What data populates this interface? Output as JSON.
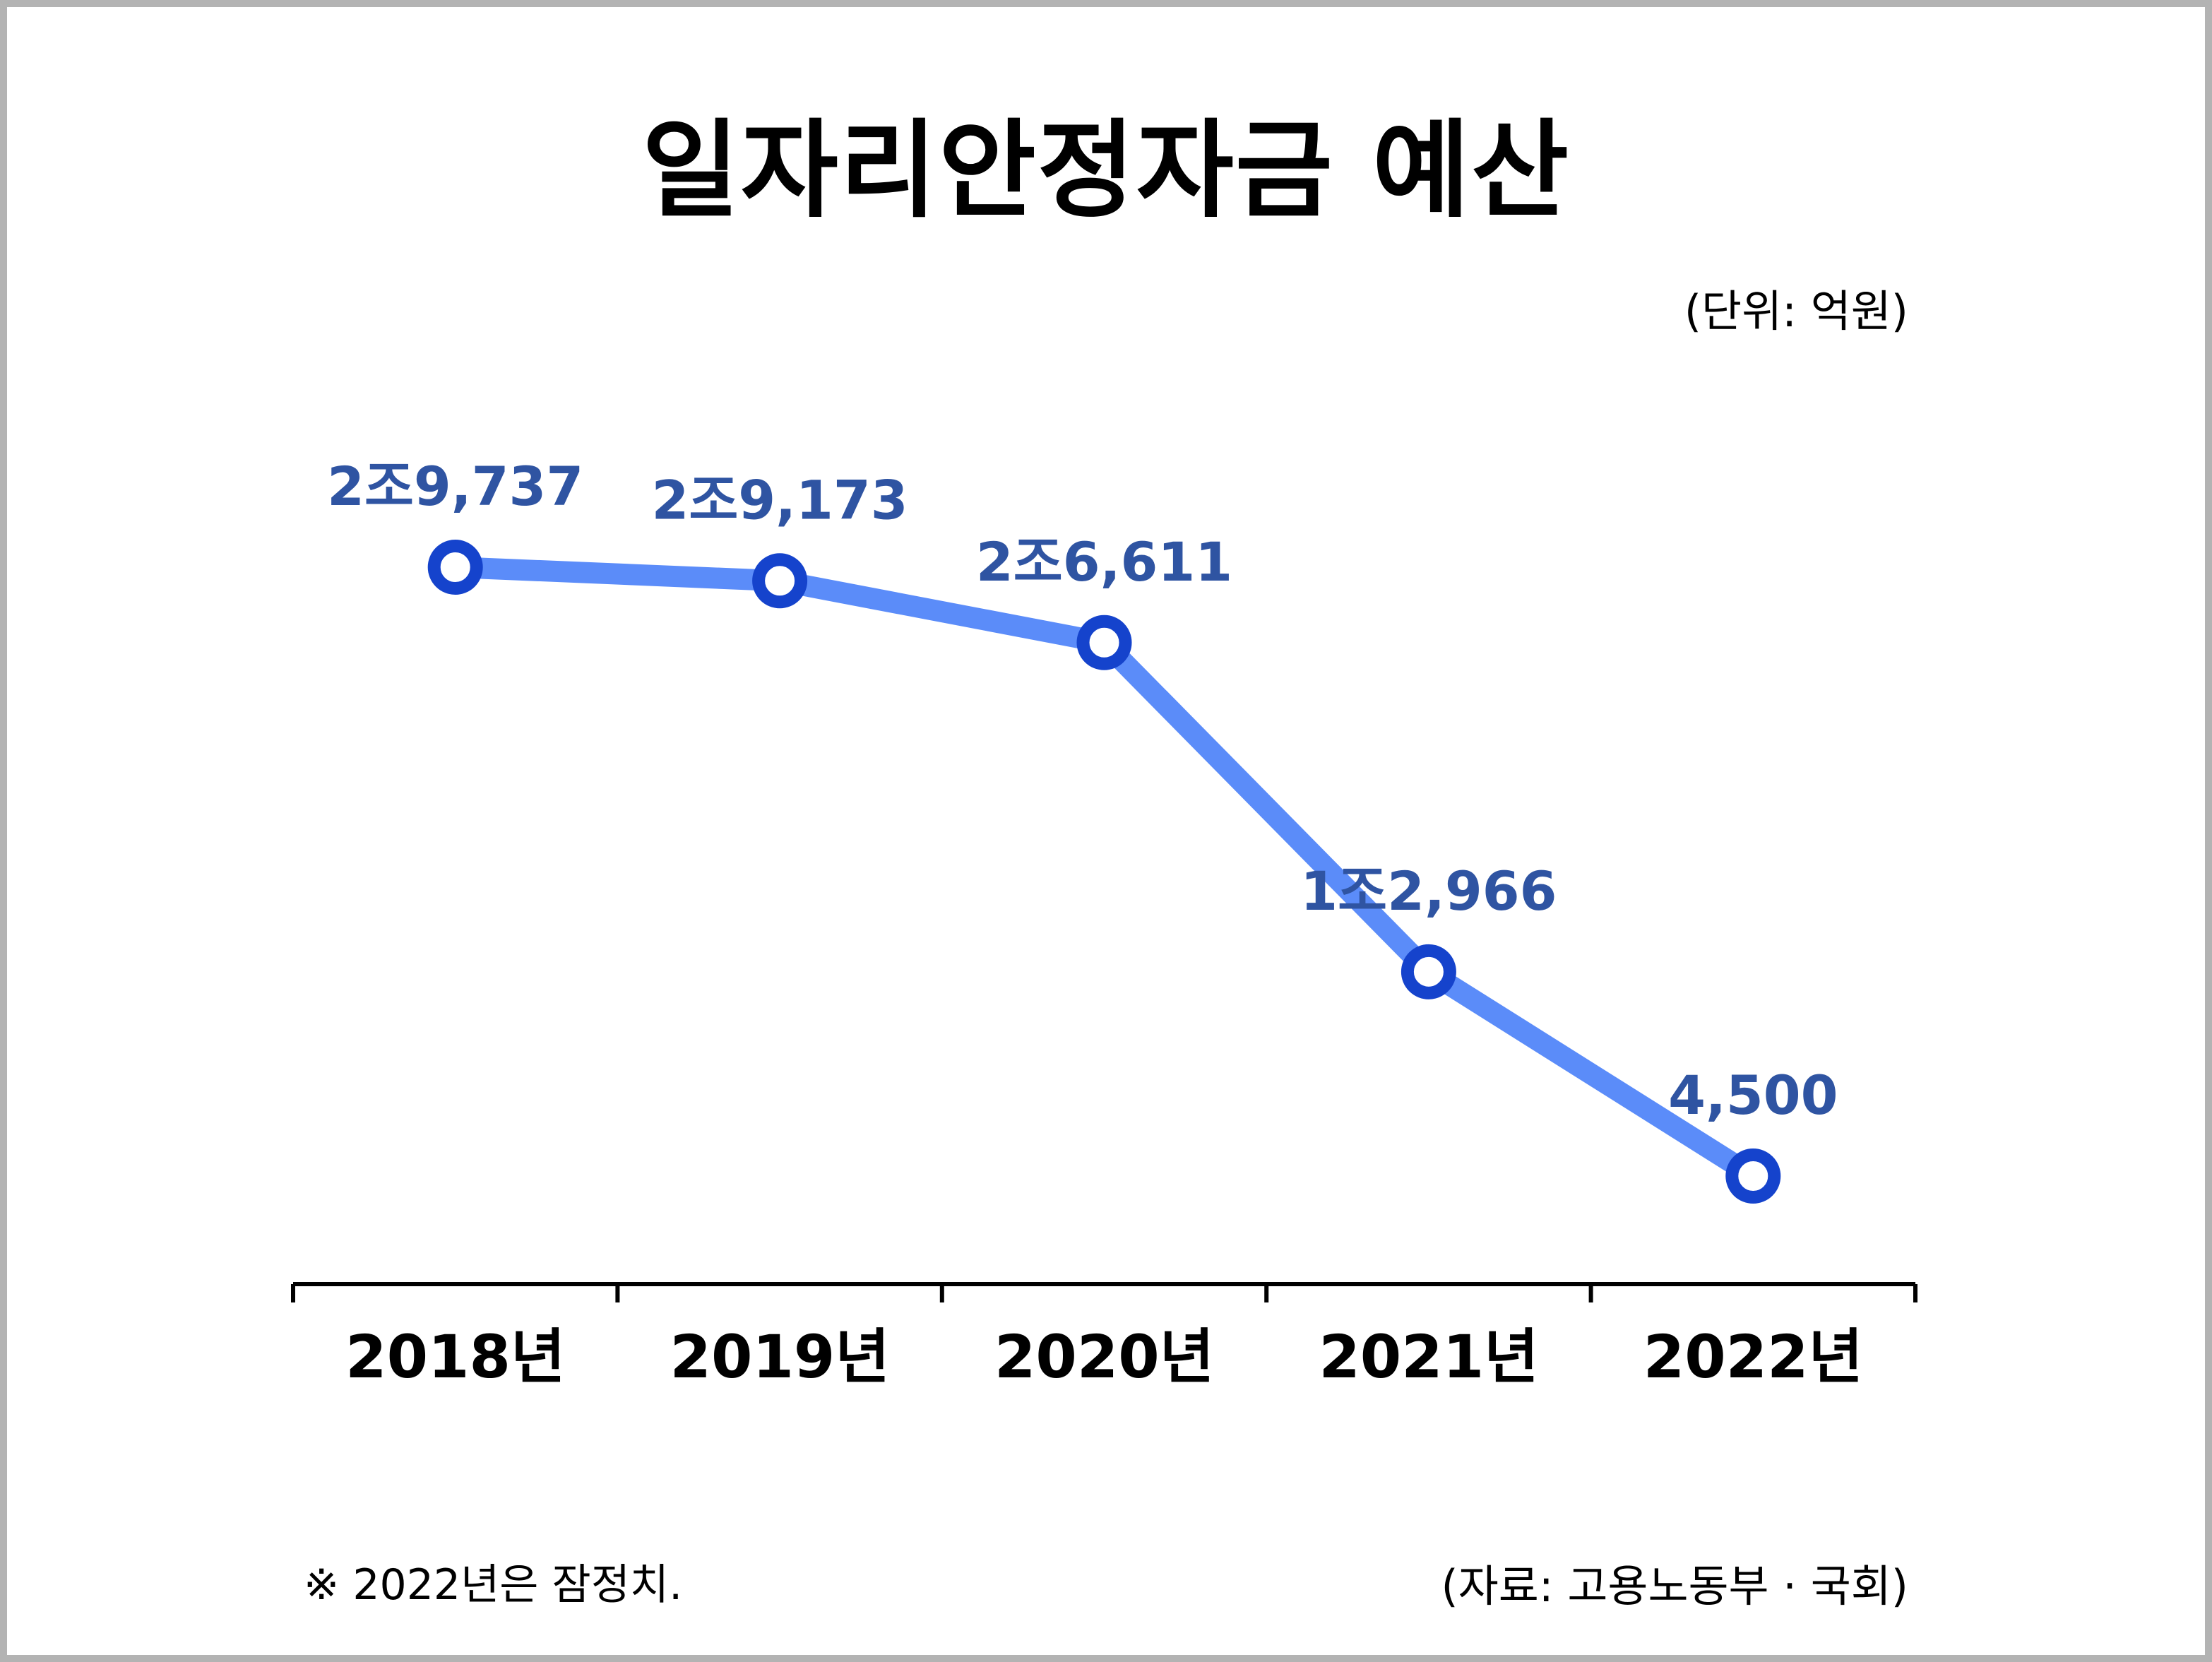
{
  "chart_data": {
    "type": "line",
    "title": "일자리안정자금 예산",
    "unit": "(단위: 억원)",
    "categories": [
      "2018년",
      "2019년",
      "2020년",
      "2021년",
      "2022년"
    ],
    "series": [
      {
        "values": [
          29737,
          29173,
          26611,
          12966,
          4500
        ]
      }
    ],
    "data_labels": [
      "2조9,737",
      "2조9,173",
      "2조6,611",
      "1조2,966",
      "4,500"
    ],
    "ylim": [
      0,
      32000
    ],
    "grid": false,
    "note": "※ 2022년은 잠정치.",
    "source": "(자료: 고용노동부 · 국회)",
    "colors": {
      "line": "#5b8cf9",
      "marker": "#1543cc",
      "label": "#2f54a2"
    }
  }
}
